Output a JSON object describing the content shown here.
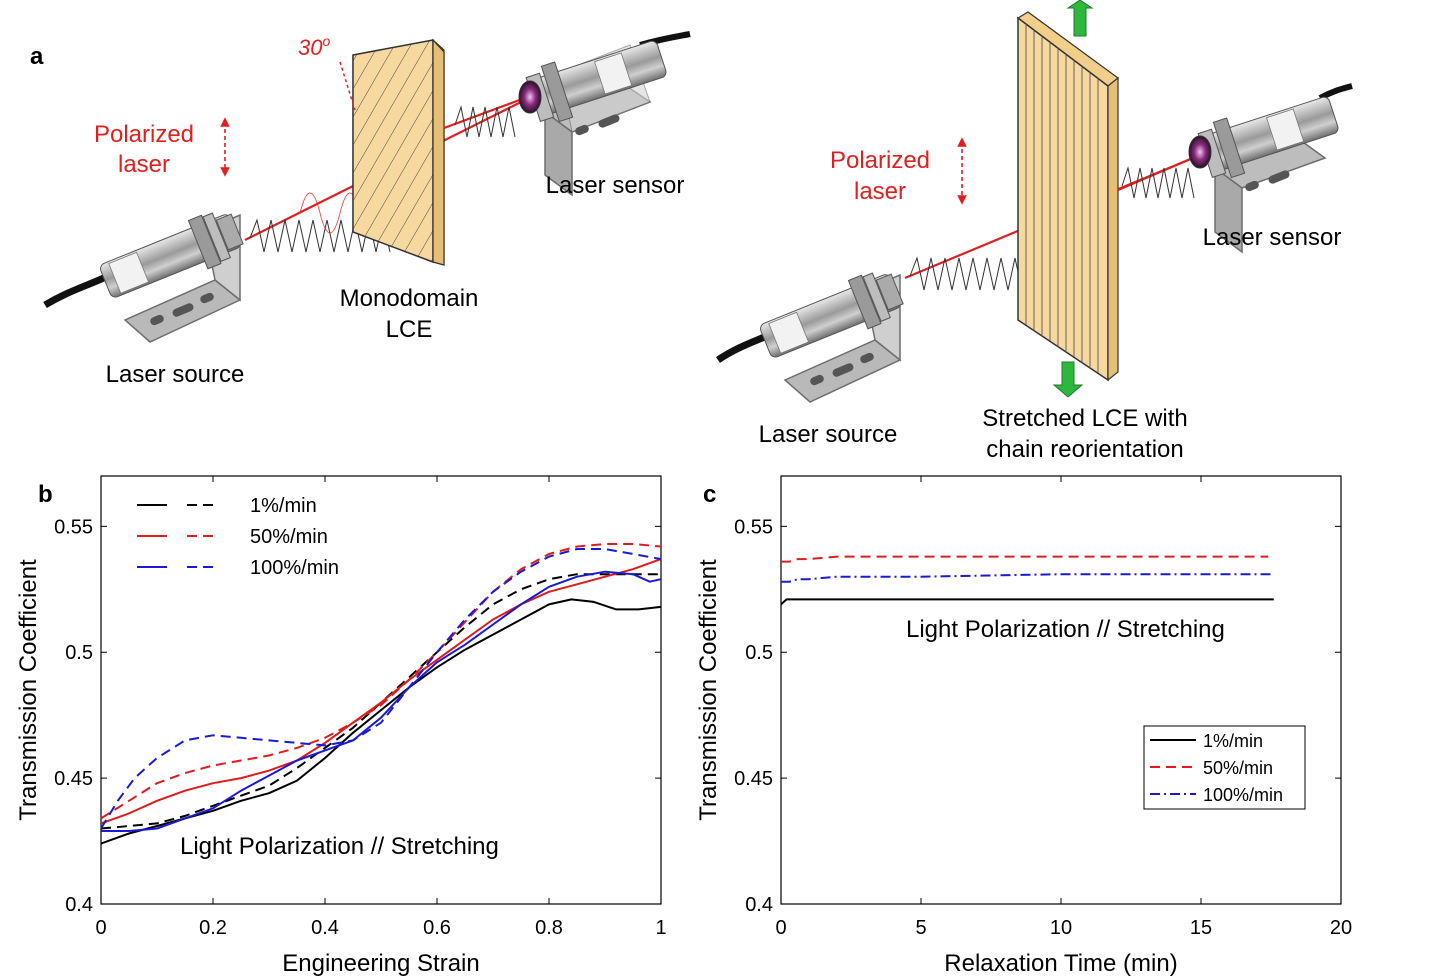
{
  "panel_a": {
    "label": "a",
    "left": {
      "angle_label": "30",
      "angle_sup": "o",
      "laser_line1": "Polarized",
      "laser_line2": "laser",
      "sample_line1": "Monodomain",
      "sample_line2": "LCE",
      "source_label": "Laser source",
      "sensor_label": "Laser sensor"
    },
    "right": {
      "laser_line1": "Polarized",
      "laser_line2": "laser",
      "sample_line1": "Stretched LCE with",
      "sample_line2": "chain reorientation",
      "source_label": "Laser source",
      "sensor_label": "Laser sensor"
    }
  },
  "colors": {
    "laser_red": "#e02020",
    "lce_fill": "#f7d9a0",
    "arrow_green": "#2db83d",
    "black": "#000000",
    "red": "#e01b1b",
    "blue": "#1a1ad6"
  },
  "chart_data": [
    {
      "panel": "b",
      "type": "line",
      "xlabel": "Engineering Strain",
      "ylabel": "Transmission Coefficient",
      "xlim": [
        0,
        1
      ],
      "ylim": [
        0.4,
        0.57
      ],
      "xticks": [
        "0",
        "0.2",
        "0.4",
        "0.6",
        "0.8",
        "1"
      ],
      "yticks": [
        "0.4",
        "0.45",
        "0.5",
        "0.55"
      ],
      "annotation": "Light Polarization // Stretching",
      "legend": [
        "1%/min",
        "50%/min",
        "100%/min"
      ],
      "legend_position": "top-left",
      "series": [
        {
          "name": "1%/min",
          "style": "solid",
          "color": "#000000",
          "x": [
            0,
            0.05,
            0.1,
            0.15,
            0.2,
            0.25,
            0.3,
            0.35,
            0.4,
            0.45,
            0.5,
            0.55,
            0.6,
            0.65,
            0.7,
            0.75,
            0.8,
            0.84,
            0.88,
            0.92,
            0.96,
            1.0
          ],
          "y": [
            0.424,
            0.428,
            0.431,
            0.434,
            0.437,
            0.441,
            0.444,
            0.449,
            0.458,
            0.468,
            0.477,
            0.486,
            0.494,
            0.501,
            0.507,
            0.513,
            0.519,
            0.521,
            0.52,
            0.517,
            0.517,
            0.518
          ]
        },
        {
          "name": "1%/min",
          "style": "dashed",
          "color": "#000000",
          "x": [
            0,
            0.05,
            0.1,
            0.15,
            0.2,
            0.25,
            0.3,
            0.35,
            0.4,
            0.45,
            0.5,
            0.55,
            0.6,
            0.65,
            0.7,
            0.75,
            0.8,
            0.85,
            0.9,
            0.95,
            1.0
          ],
          "y": [
            0.43,
            0.431,
            0.432,
            0.435,
            0.439,
            0.443,
            0.447,
            0.454,
            0.462,
            0.47,
            0.48,
            0.49,
            0.5,
            0.51,
            0.519,
            0.525,
            0.529,
            0.531,
            0.531,
            0.531,
            0.531
          ]
        },
        {
          "name": "50%/min",
          "style": "solid",
          "color": "#e01b1b",
          "x": [
            0,
            0.05,
            0.1,
            0.15,
            0.2,
            0.25,
            0.3,
            0.35,
            0.4,
            0.45,
            0.5,
            0.55,
            0.6,
            0.65,
            0.7,
            0.75,
            0.8,
            0.85,
            0.9,
            0.95,
            1.0
          ],
          "y": [
            0.432,
            0.436,
            0.441,
            0.445,
            0.448,
            0.45,
            0.453,
            0.457,
            0.464,
            0.472,
            0.48,
            0.489,
            0.497,
            0.505,
            0.513,
            0.519,
            0.524,
            0.527,
            0.53,
            0.533,
            0.537
          ]
        },
        {
          "name": "50%/min",
          "style": "dashed",
          "color": "#e01b1b",
          "x": [
            0,
            0.05,
            0.1,
            0.15,
            0.2,
            0.25,
            0.3,
            0.35,
            0.4,
            0.45,
            0.5,
            0.55,
            0.6,
            0.65,
            0.7,
            0.75,
            0.8,
            0.85,
            0.9,
            0.95,
            1.0
          ],
          "y": [
            0.434,
            0.441,
            0.448,
            0.452,
            0.455,
            0.457,
            0.459,
            0.462,
            0.466,
            0.472,
            0.479,
            0.489,
            0.5,
            0.512,
            0.524,
            0.533,
            0.539,
            0.542,
            0.543,
            0.543,
            0.542
          ]
        },
        {
          "name": "100%/min",
          "style": "solid",
          "color": "#1a1ad6",
          "x": [
            0,
            0.05,
            0.1,
            0.15,
            0.2,
            0.25,
            0.3,
            0.35,
            0.4,
            0.45,
            0.5,
            0.55,
            0.6,
            0.65,
            0.7,
            0.75,
            0.8,
            0.85,
            0.9,
            0.95,
            0.98,
            1.0
          ],
          "y": [
            0.429,
            0.429,
            0.43,
            0.434,
            0.438,
            0.445,
            0.451,
            0.457,
            0.461,
            0.465,
            0.474,
            0.486,
            0.496,
            0.503,
            0.511,
            0.519,
            0.526,
            0.53,
            0.532,
            0.531,
            0.528,
            0.529
          ]
        },
        {
          "name": "100%/min",
          "style": "dashed",
          "color": "#1a1ad6",
          "x": [
            0,
            0.03,
            0.06,
            0.1,
            0.15,
            0.2,
            0.25,
            0.3,
            0.35,
            0.4,
            0.45,
            0.5,
            0.55,
            0.6,
            0.65,
            0.7,
            0.75,
            0.8,
            0.85,
            0.9,
            0.95,
            1.0
          ],
          "y": [
            0.43,
            0.441,
            0.45,
            0.458,
            0.465,
            0.467,
            0.466,
            0.465,
            0.464,
            0.463,
            0.465,
            0.472,
            0.486,
            0.5,
            0.513,
            0.524,
            0.532,
            0.538,
            0.541,
            0.541,
            0.539,
            0.537
          ]
        }
      ]
    },
    {
      "panel": "c",
      "type": "line",
      "xlabel": "Relaxation Time (min)",
      "ylabel": "Transmission Coefficient",
      "xlim": [
        0,
        20
      ],
      "ylim": [
        0.4,
        0.57
      ],
      "xticks": [
        "0",
        "5",
        "10",
        "15",
        "20"
      ],
      "yticks": [
        "0.4",
        "0.45",
        "0.5",
        "0.55"
      ],
      "annotation": "Light Polarization // Stretching",
      "legend": [
        "1%/min",
        "50%/min",
        "100%/min"
      ],
      "legend_position": "lower-right",
      "series": [
        {
          "name": "1%/min",
          "style": "solid",
          "color": "#000000",
          "x": [
            0,
            0.2,
            0.5,
            1,
            2,
            5,
            10,
            15,
            17.6
          ],
          "y": [
            0.519,
            0.521,
            0.521,
            0.521,
            0.521,
            0.521,
            0.521,
            0.521,
            0.521
          ]
        },
        {
          "name": "50%/min",
          "style": "dashed",
          "color": "#e01b1b",
          "x": [
            0,
            0.3,
            0.6,
            1,
            2,
            5,
            10,
            15,
            17.4
          ],
          "y": [
            0.536,
            0.536,
            0.537,
            0.537,
            0.538,
            0.538,
            0.538,
            0.538,
            0.538
          ]
        },
        {
          "name": "100%/min",
          "style": "dashdot",
          "color": "#1a1ad6",
          "x": [
            0,
            0.3,
            0.6,
            1,
            2,
            5,
            10,
            15,
            17.5
          ],
          "y": [
            0.528,
            0.528,
            0.529,
            0.529,
            0.53,
            0.53,
            0.531,
            0.531,
            0.531
          ]
        }
      ]
    }
  ]
}
